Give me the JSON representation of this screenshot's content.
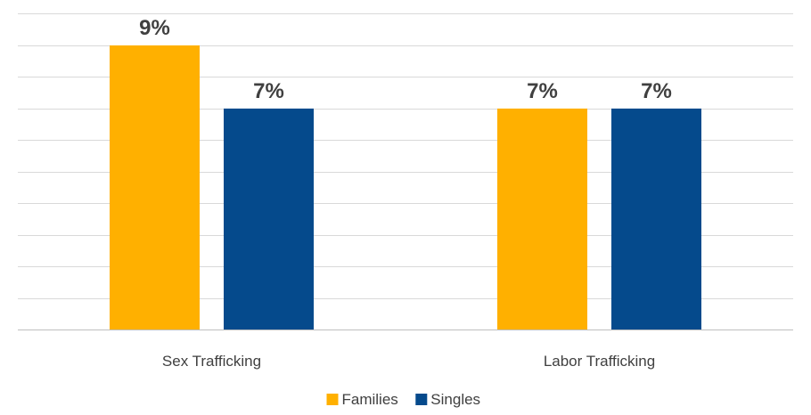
{
  "chart_data": {
    "type": "bar",
    "categories": [
      "Sex Trafficking",
      "Labor Trafficking"
    ],
    "series": [
      {
        "name": "Families",
        "values": [
          9,
          7
        ],
        "labels": [
          "9%",
          "7%"
        ],
        "color": "#FFB000"
      },
      {
        "name": "Singles",
        "values": [
          7,
          7
        ],
        "labels": [
          "7%",
          "7%"
        ],
        "color": "#054A8C"
      }
    ],
    "unit": "%",
    "ylim": [
      0,
      9
    ],
    "grid": true,
    "legend_position": "bottom",
    "title": "",
    "xlabel": "",
    "ylabel": ""
  }
}
